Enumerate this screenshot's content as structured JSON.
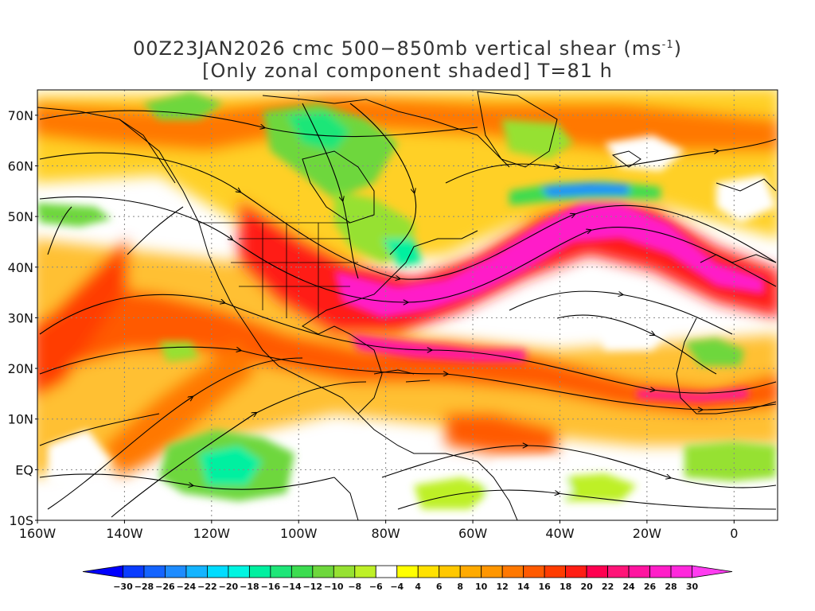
{
  "title": {
    "line1_prefix": "00Z23JAN2026 cmc 500−850mb vertical shear (ms",
    "line1_sup": "-1",
    "line1_suffix": ")",
    "line2": "[Only zonal component shaded] T=81 h"
  },
  "map": {
    "lon_range": [
      -160,
      10
    ],
    "lat_range": [
      -10,
      75
    ],
    "lat_ticks": [
      {
        "value": 70,
        "label": "70N"
      },
      {
        "value": 60,
        "label": "60N"
      },
      {
        "value": 50,
        "label": "50N"
      },
      {
        "value": 40,
        "label": "40N"
      },
      {
        "value": 30,
        "label": "30N"
      },
      {
        "value": 20,
        "label": "20N"
      },
      {
        "value": 10,
        "label": "10N"
      },
      {
        "value": 0,
        "label": "EQ"
      },
      {
        "value": -10,
        "label": "10S"
      }
    ],
    "lon_ticks": [
      {
        "value": -160,
        "label": "160W"
      },
      {
        "value": -140,
        "label": "140W"
      },
      {
        "value": -120,
        "label": "120W"
      },
      {
        "value": -100,
        "label": "100W"
      },
      {
        "value": -80,
        "label": "80W"
      },
      {
        "value": -60,
        "label": "60W"
      },
      {
        "value": -40,
        "label": "40W"
      },
      {
        "value": -20,
        "label": "20W"
      },
      {
        "value": 0,
        "label": "0"
      }
    ],
    "features": {
      "jet_stream": "strong positive zonal shear band (24-30 m/s) from central US across Atlantic to Europe",
      "negative_region_atlantic": "negative shear (-20 to -28) south of Greenland near 55N",
      "negative_region_pacific": "negative shear near 5N 115W",
      "streamlines": "black streamlines with arrows"
    }
  },
  "colorbar": {
    "levels": [
      -30,
      -28,
      -26,
      -24,
      -22,
      -20,
      -18,
      -16,
      -14,
      -12,
      -10,
      -8,
      -6,
      -4,
      4,
      6,
      8,
      10,
      12,
      14,
      16,
      18,
      20,
      22,
      24,
      26,
      28,
      30
    ],
    "labels": [
      "−30",
      "−28",
      "−26",
      "−24",
      "−22",
      "−20",
      "−18",
      "−16",
      "−14",
      "−12",
      "−10",
      "−8",
      "−6",
      "−4",
      "4",
      "6",
      "8",
      "10",
      "12",
      "14",
      "16",
      "18",
      "20",
      "22",
      "24",
      "26",
      "28",
      "30"
    ],
    "colors": [
      "#0000ff",
      "#0a3cff",
      "#1464ff",
      "#1e8cff",
      "#14b4ff",
      "#00dcff",
      "#00f5e1",
      "#00f0a0",
      "#1ee678",
      "#3cdc50",
      "#6ed73c",
      "#96e132",
      "#bef028",
      "#ffffff",
      "#ffff00",
      "#ffe100",
      "#ffc800",
      "#ffaa00",
      "#ff9600",
      "#ff7800",
      "#ff5a00",
      "#ff3c00",
      "#ff1e14",
      "#ff0050",
      "#ff1478",
      "#ff14a0",
      "#ff1ec8",
      "#ff28dc",
      "#ff3cf0"
    ]
  }
}
